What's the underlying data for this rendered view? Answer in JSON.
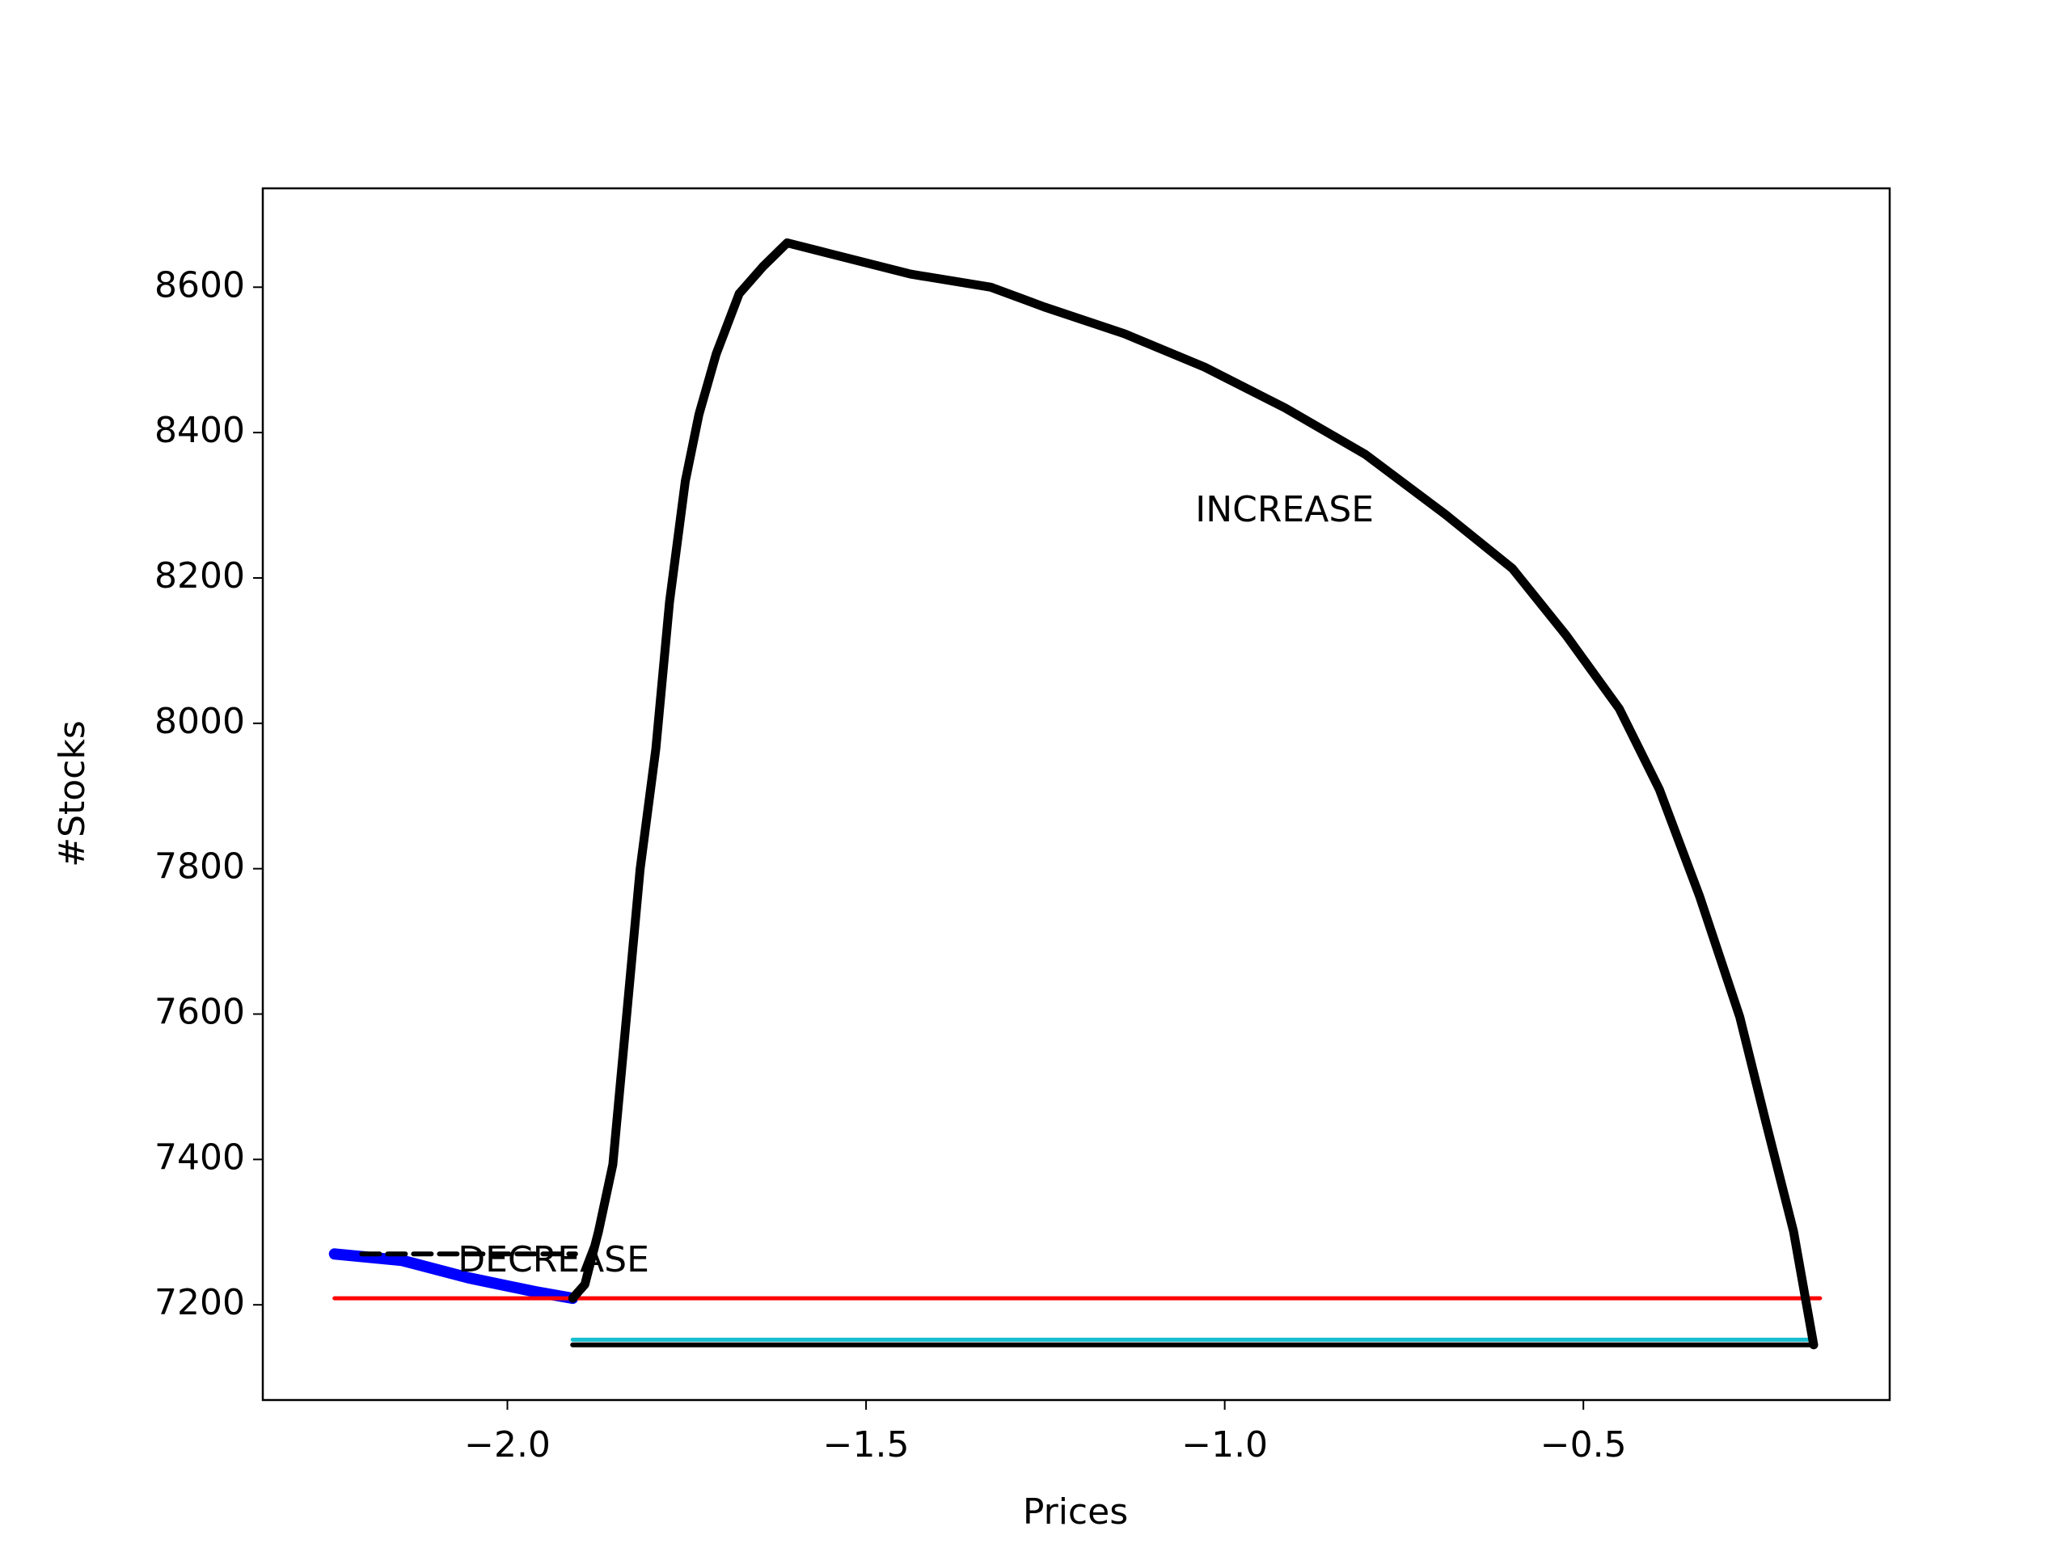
{
  "chart_data": {
    "type": "line",
    "xlabel": "Prices",
    "ylabel": "#Stocks",
    "xlim": [
      -2.341,
      -0.073
    ],
    "ylim": [
      7069,
      8736
    ],
    "xticks": [
      {
        "value": -2.0,
        "label": "−2.0"
      },
      {
        "value": -1.5,
        "label": "−1.5"
      },
      {
        "value": -1.0,
        "label": "−1.0"
      },
      {
        "value": -0.5,
        "label": "−0.5"
      }
    ],
    "yticks": [
      7200,
      7400,
      7600,
      7800,
      8000,
      8200,
      8400,
      8600
    ],
    "grid": false,
    "series": [
      {
        "color": "#0000ff",
        "linewidth": 14,
        "linestyle": "solid",
        "x": [
          -2.241,
          -2.147,
          -2.054,
          -1.961,
          -1.909
        ],
        "values": [
          7270,
          7261,
          7237,
          7218,
          7209
        ]
      },
      {
        "color": "#000000",
        "linewidth": 6,
        "linestyle": "dashed",
        "x": [
          -2.203,
          -1.905
        ],
        "values": [
          7270,
          7270
        ]
      },
      {
        "color": "#ff0000",
        "linewidth": 5,
        "linestyle": "solid",
        "x": [
          -2.241,
          -0.17
        ],
        "values": [
          7209,
          7209
        ]
      },
      {
        "color": "#17becf",
        "linewidth": 5,
        "linestyle": "solid",
        "x": [
          -1.909,
          -0.179
        ],
        "values": [
          7152,
          7152
        ]
      },
      {
        "color": "#000000",
        "linewidth": 6,
        "linestyle": "solid",
        "x": [
          -1.909,
          -0.179
        ],
        "values": [
          7145,
          7145
        ]
      },
      {
        "color": "#000000",
        "linewidth": 11,
        "linestyle": "solid",
        "x": [
          -1.909,
          -1.892,
          -1.873,
          -1.853,
          -1.834,
          -1.815,
          -1.793,
          -1.774,
          -1.752,
          -1.733,
          -1.709,
          -1.677,
          -1.644,
          -1.61,
          -1.55,
          -1.438,
          -1.326,
          -1.252,
          -1.14,
          -1.028,
          -0.916,
          -0.804,
          -0.692,
          -0.599,
          -0.524,
          -0.45,
          -0.394,
          -0.338,
          -0.282,
          -0.245,
          -0.207,
          -0.179
        ],
        "values": [
          7209,
          7228,
          7301,
          7393,
          7596,
          7799,
          7965,
          8167,
          8333,
          8425,
          8508,
          8591,
          8628,
          8661,
          8646,
          8618,
          8600,
          8573,
          8536,
          8490,
          8434,
          8370,
          8287,
          8213,
          8121,
          8020,
          7909,
          7762,
          7596,
          7449,
          7301,
          7145
        ]
      }
    ],
    "annotations": [
      {
        "text": "INCREASE",
        "x": -1.041,
        "y": 8291
      },
      {
        "text": "DECREASE",
        "x": -2.069,
        "y": 7259
      }
    ]
  }
}
